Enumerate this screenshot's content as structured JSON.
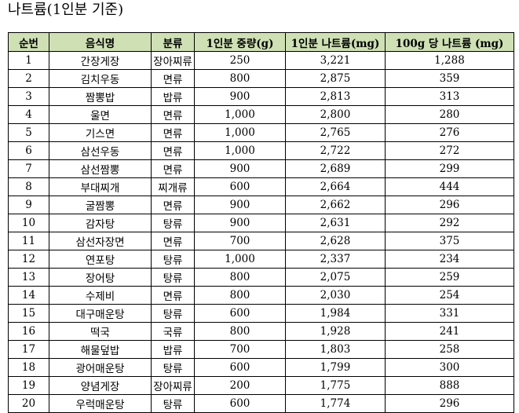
{
  "title": "나트륨(1인분 기준)",
  "table": {
    "headers": [
      "순번",
      "음식명",
      "분류",
      "1인분 중량(g)",
      "1인분 나트륨(mg)",
      "100g 당 나트륨 (mg)"
    ],
    "rows": [
      [
        "1",
        "간장게장",
        "장아찌류",
        "250",
        "3,221",
        "1,288"
      ],
      [
        "2",
        "김치우동",
        "면류",
        "800",
        "2,875",
        "359"
      ],
      [
        "3",
        "짬뽕밥",
        "밥류",
        "900",
        "2,813",
        "313"
      ],
      [
        "4",
        "울면",
        "면류",
        "1,000",
        "2,800",
        "280"
      ],
      [
        "5",
        "기스면",
        "면류",
        "1,000",
        "2,765",
        "276"
      ],
      [
        "6",
        "삼선우동",
        "면류",
        "1,000",
        "2,722",
        "272"
      ],
      [
        "7",
        "삼선짬뽕",
        "면류",
        "900",
        "2,689",
        "299"
      ],
      [
        "8",
        "부대찌개",
        "찌개류",
        "600",
        "2,664",
        "444"
      ],
      [
        "9",
        "굴짬뽕",
        "면류",
        "900",
        "2,662",
        "296"
      ],
      [
        "10",
        "감자탕",
        "탕류",
        "900",
        "2,631",
        "292"
      ],
      [
        "11",
        "삼선자장면",
        "면류",
        "700",
        "2,628",
        "375"
      ],
      [
        "12",
        "연포탕",
        "탕류",
        "1,000",
        "2,337",
        "234"
      ],
      [
        "13",
        "장어탕",
        "탕류",
        "800",
        "2,075",
        "259"
      ],
      [
        "14",
        "수제비",
        "면류",
        "800",
        "2,030",
        "254"
      ],
      [
        "15",
        "대구매운탕",
        "탕류",
        "600",
        "1,984",
        "331"
      ],
      [
        "16",
        "떡국",
        "국류",
        "800",
        "1,928",
        "241"
      ],
      [
        "17",
        "해물덮밥",
        "밥류",
        "700",
        "1,803",
        "258"
      ],
      [
        "18",
        "광어매운탕",
        "탕류",
        "600",
        "1,799",
        "300"
      ],
      [
        "19",
        "양념게장",
        "장아찌류",
        "200",
        "1,775",
        "888"
      ],
      [
        "20",
        "우럭매운탕",
        "탕류",
        "600",
        "1,774",
        "296"
      ]
    ]
  }
}
